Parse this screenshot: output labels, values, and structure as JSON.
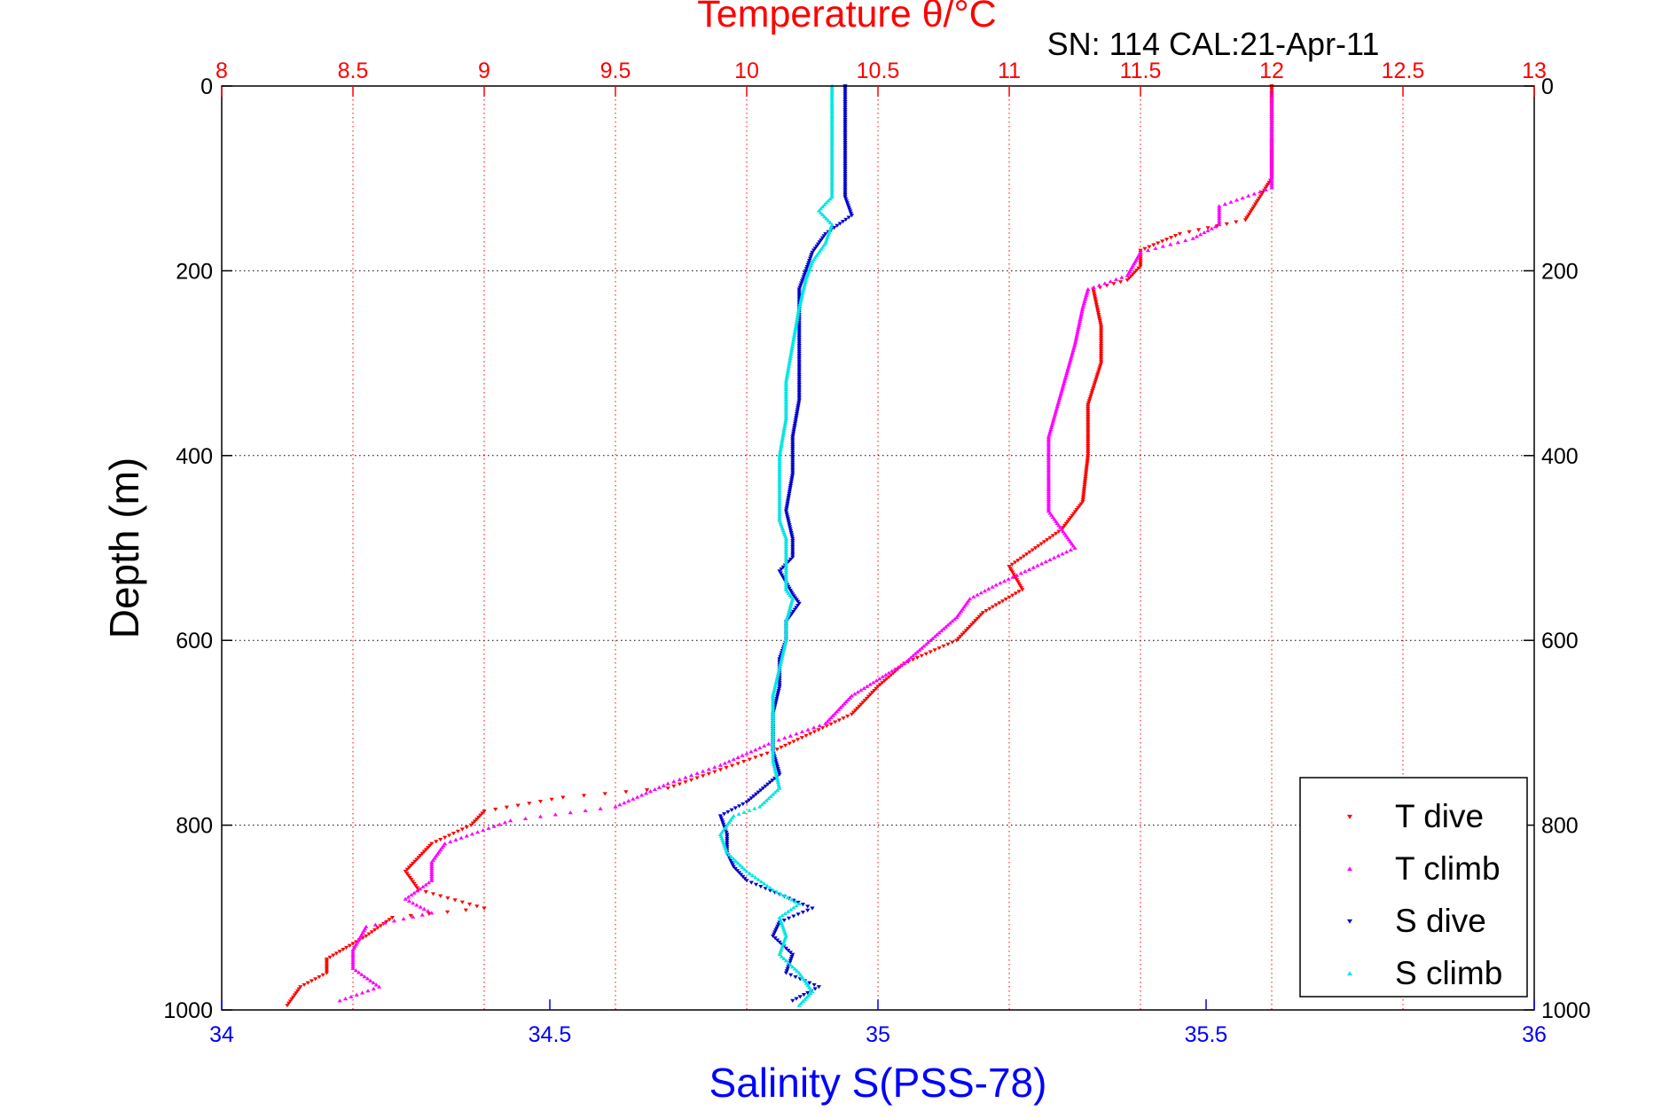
{
  "chart_data": {
    "type": "scatter",
    "title": "Temperature θ/°C",
    "subtitle": "SN: 114  CAL:21-Apr-11",
    "xlabel": "Salinity S(PSS-78)",
    "ylabel": "Depth (m)",
    "x_salinity": {
      "lim": [
        34,
        36
      ],
      "ticks": [
        34,
        34.5,
        35,
        35.5,
        36
      ],
      "tick_labels": [
        "34",
        "34.5",
        "35",
        "35.5",
        "36"
      ],
      "color": "#0000ff"
    },
    "x_temperature": {
      "lim": [
        8,
        13
      ],
      "ticks": [
        8,
        8.5,
        9,
        9.5,
        10,
        10.5,
        11,
        11.5,
        12,
        12.5,
        13
      ],
      "tick_labels": [
        "8",
        "8.5",
        "9",
        "9.5",
        "10",
        "10.5",
        "11",
        "11.5",
        "12",
        "12.5",
        "13"
      ],
      "color": "#ff0000"
    },
    "y_depth": {
      "lim": [
        0,
        1000
      ],
      "reversed": true,
      "ticks": [
        0,
        200,
        400,
        600,
        800,
        1000
      ],
      "tick_labels": [
        "0",
        "200",
        "400",
        "600",
        "800",
        "1000"
      ]
    },
    "grid": true,
    "legend": {
      "position": "bottom-right",
      "entries": [
        "T dive",
        "T climb",
        "S dive",
        "S climb"
      ]
    },
    "series": [
      {
        "name": "T dive",
        "axis": "temperature",
        "color": "#ff0000",
        "marker": "triangle-down",
        "points": [
          [
            12.0,
            0
          ],
          [
            12.0,
            50
          ],
          [
            12.0,
            100
          ],
          [
            11.9,
            145
          ],
          [
            11.65,
            160
          ],
          [
            11.5,
            178
          ],
          [
            11.5,
            195
          ],
          [
            11.45,
            210
          ],
          [
            11.32,
            220
          ],
          [
            11.35,
            260
          ],
          [
            11.35,
            300
          ],
          [
            11.3,
            345
          ],
          [
            11.3,
            400
          ],
          [
            11.28,
            450
          ],
          [
            11.2,
            480
          ],
          [
            11.1,
            500
          ],
          [
            11.0,
            520
          ],
          [
            11.05,
            545
          ],
          [
            10.9,
            570
          ],
          [
            10.8,
            600
          ],
          [
            10.6,
            625
          ],
          [
            10.5,
            650
          ],
          [
            10.4,
            680
          ],
          [
            10.1,
            720
          ],
          [
            9.9,
            740
          ],
          [
            9.7,
            760
          ],
          [
            9.3,
            770
          ],
          [
            9.0,
            785
          ],
          [
            8.95,
            800
          ],
          [
            8.8,
            820
          ],
          [
            8.7,
            850
          ],
          [
            8.75,
            870
          ],
          [
            9.0,
            890
          ],
          [
            8.65,
            900
          ],
          [
            8.55,
            920
          ],
          [
            8.4,
            945
          ],
          [
            8.4,
            960
          ],
          [
            8.3,
            975
          ],
          [
            8.25,
            995
          ]
        ]
      },
      {
        "name": "T climb",
        "axis": "temperature",
        "color": "#ff00ff",
        "marker": "triangle-up",
        "points": [
          [
            12.0,
            5
          ],
          [
            12.0,
            50
          ],
          [
            12.0,
            110
          ],
          [
            11.8,
            130
          ],
          [
            11.8,
            150
          ],
          [
            11.7,
            165
          ],
          [
            11.5,
            180
          ],
          [
            11.45,
            205
          ],
          [
            11.3,
            220
          ],
          [
            11.28,
            240
          ],
          [
            11.25,
            280
          ],
          [
            11.2,
            330
          ],
          [
            11.15,
            380
          ],
          [
            11.15,
            420
          ],
          [
            11.15,
            460
          ],
          [
            11.2,
            480
          ],
          [
            11.25,
            500
          ],
          [
            10.95,
            540
          ],
          [
            10.85,
            555
          ],
          [
            10.8,
            575
          ],
          [
            10.7,
            600
          ],
          [
            10.6,
            625
          ],
          [
            10.4,
            660
          ],
          [
            10.3,
            690
          ],
          [
            10.1,
            710
          ],
          [
            9.9,
            735
          ],
          [
            9.7,
            755
          ],
          [
            9.5,
            780
          ],
          [
            9.1,
            795
          ],
          [
            8.85,
            820
          ],
          [
            8.8,
            840
          ],
          [
            8.8,
            860
          ],
          [
            8.7,
            880
          ],
          [
            8.8,
            895
          ],
          [
            8.55,
            910
          ],
          [
            8.5,
            935
          ],
          [
            8.5,
            955
          ],
          [
            8.6,
            975
          ],
          [
            8.45,
            990
          ]
        ]
      },
      {
        "name": "S dive",
        "axis": "salinity",
        "color": "#0000cc",
        "marker": "triangle-down",
        "points": [
          [
            34.95,
            0
          ],
          [
            34.95,
            30
          ],
          [
            34.95,
            80
          ],
          [
            34.95,
            120
          ],
          [
            34.96,
            140
          ],
          [
            34.92,
            160
          ],
          [
            34.9,
            180
          ],
          [
            34.89,
            200
          ],
          [
            34.88,
            220
          ],
          [
            34.88,
            260
          ],
          [
            34.88,
            300
          ],
          [
            34.88,
            340
          ],
          [
            34.87,
            380
          ],
          [
            34.87,
            420
          ],
          [
            34.86,
            460
          ],
          [
            34.87,
            490
          ],
          [
            34.87,
            510
          ],
          [
            34.85,
            525
          ],
          [
            34.87,
            550
          ],
          [
            34.88,
            560
          ],
          [
            34.86,
            580
          ],
          [
            34.86,
            600
          ],
          [
            34.85,
            620
          ],
          [
            34.85,
            650
          ],
          [
            34.84,
            680
          ],
          [
            34.84,
            700
          ],
          [
            34.84,
            720
          ],
          [
            34.85,
            745
          ],
          [
            34.8,
            775
          ],
          [
            34.76,
            790
          ],
          [
            34.77,
            810
          ],
          [
            34.77,
            830
          ],
          [
            34.78,
            845
          ],
          [
            34.8,
            860
          ],
          [
            34.85,
            875
          ],
          [
            34.9,
            890
          ],
          [
            34.85,
            905
          ],
          [
            34.84,
            920
          ],
          [
            34.87,
            940
          ],
          [
            34.86,
            960
          ],
          [
            34.91,
            975
          ],
          [
            34.87,
            990
          ]
        ]
      },
      {
        "name": "S climb",
        "axis": "salinity",
        "color": "#00e5e5",
        "marker": "triangle-up",
        "points": [
          [
            34.93,
            0
          ],
          [
            34.93,
            40
          ],
          [
            34.93,
            100
          ],
          [
            34.93,
            120
          ],
          [
            34.91,
            135
          ],
          [
            34.93,
            150
          ],
          [
            34.92,
            170
          ],
          [
            34.9,
            190
          ],
          [
            34.89,
            210
          ],
          [
            34.88,
            240
          ],
          [
            34.87,
            280
          ],
          [
            34.86,
            320
          ],
          [
            34.86,
            360
          ],
          [
            34.85,
            400
          ],
          [
            34.85,
            440
          ],
          [
            34.85,
            470
          ],
          [
            34.86,
            490
          ],
          [
            34.86,
            520
          ],
          [
            34.86,
            545
          ],
          [
            34.87,
            555
          ],
          [
            34.86,
            580
          ],
          [
            34.86,
            600
          ],
          [
            34.85,
            630
          ],
          [
            34.84,
            660
          ],
          [
            34.84,
            690
          ],
          [
            34.84,
            710
          ],
          [
            34.84,
            730
          ],
          [
            34.85,
            760
          ],
          [
            34.82,
            780
          ],
          [
            34.78,
            790
          ],
          [
            34.76,
            810
          ],
          [
            34.77,
            830
          ],
          [
            34.8,
            850
          ],
          [
            34.84,
            870
          ],
          [
            34.88,
            885
          ],
          [
            34.85,
            900
          ],
          [
            34.86,
            920
          ],
          [
            34.85,
            940
          ],
          [
            34.88,
            960
          ],
          [
            34.9,
            980
          ],
          [
            34.88,
            995
          ]
        ]
      }
    ]
  }
}
